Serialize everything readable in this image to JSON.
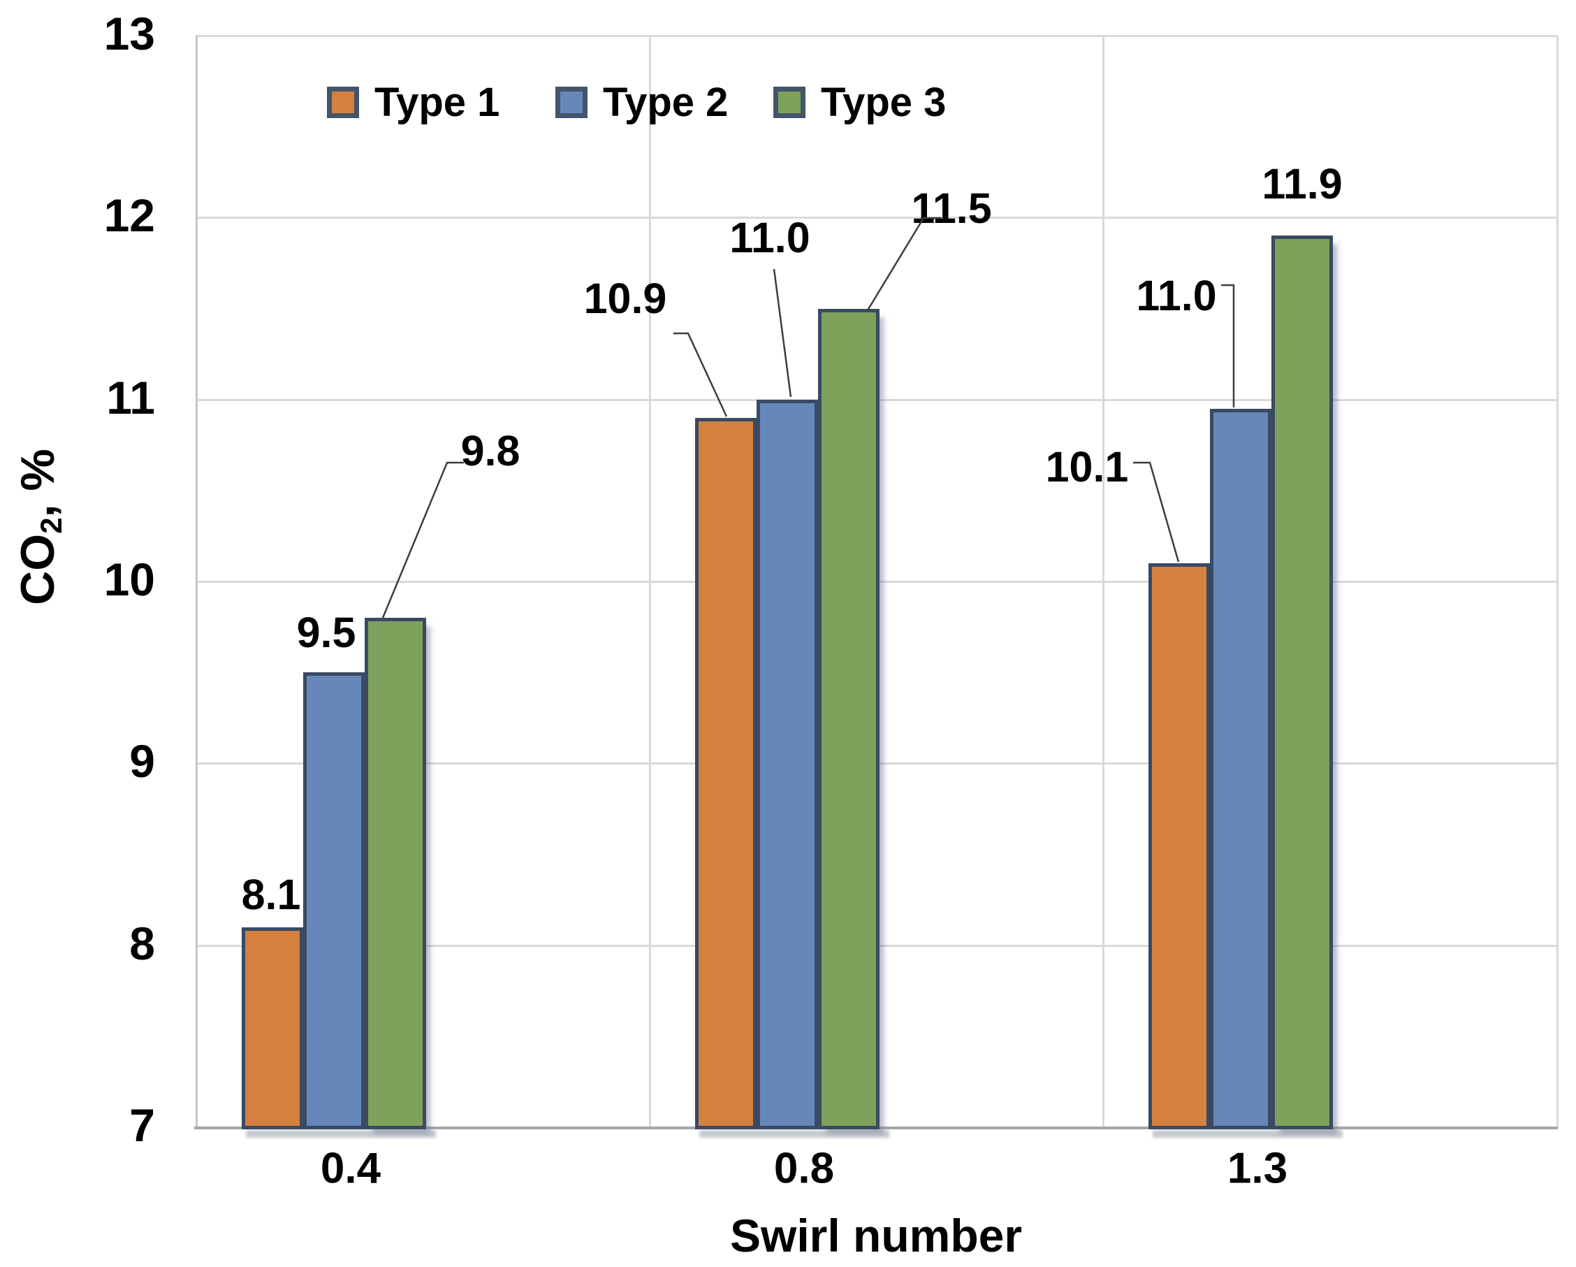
{
  "y_axis_label": {
    "base": "CO",
    "subscript": "2",
    "suffix": ", %"
  },
  "chart_data": {
    "type": "bar",
    "title": "",
    "categories": [
      "0.4",
      "0.8",
      "1.3"
    ],
    "series": [
      {
        "name": "Type 1",
        "color": "#d4813e",
        "values": [
          8.1,
          10.9,
          10.1
        ]
      },
      {
        "name": "Type 2",
        "color": "#6687b9",
        "values": [
          9.5,
          11.0,
          11.0
        ]
      },
      {
        "name": "Type 3",
        "color": "#7ea25c",
        "values": [
          9.8,
          11.5,
          11.9
        ]
      }
    ],
    "data_labels": [
      [
        "8.1",
        "10.9",
        "10.1"
      ],
      [
        "9.5",
        "11.0",
        "11.0"
      ],
      [
        "9.8",
        "11.5",
        "11.9"
      ]
    ],
    "xlabel": "Swirl number",
    "ylabel": "CO₂, %",
    "ylim": [
      7,
      13
    ],
    "yticks": [
      7,
      8,
      9,
      10,
      11,
      12,
      13
    ],
    "grid": true,
    "legend_position": "top-inside",
    "bar_border_color": "#3a4a63",
    "gridline_color": "#d9d9d9",
    "leader_line_color": "#3d3d3d"
  }
}
